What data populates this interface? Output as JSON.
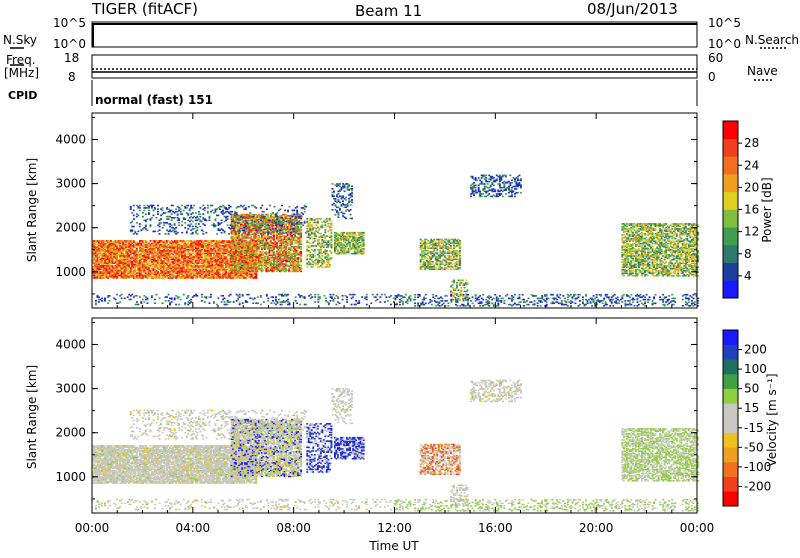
{
  "header": {
    "radar": "TIGER (fitACF)",
    "beam": "Beam 11",
    "date": "08/Jun/2013"
  },
  "top_panels": {
    "nsky_label": "N.Sky",
    "nsearch_label": "N.Search",
    "nsky_ticks": [
      "10^5",
      "10^0"
    ],
    "freq_label_1": "Freq.",
    "freq_label_2": "[MHz]",
    "freq_ticks": [
      "18",
      "8"
    ],
    "nave_label": "Nave",
    "nave_ticks": [
      "60",
      "0"
    ],
    "cpid_label": "CPID",
    "cpid_text": "normal (fast) 151"
  },
  "chart_data": [
    {
      "type": "heatmap",
      "panel": "power",
      "xlabel": "",
      "ylabel": "Slant Range [km]",
      "xlim": [
        0,
        24
      ],
      "ylim": [
        180,
        4600
      ],
      "yticks": [
        "1000",
        "2000",
        "3000",
        "4000"
      ],
      "colorbar": {
        "label": "Power [dB]",
        "ticks": [
          "4",
          "8",
          "12",
          "16",
          "20",
          "24",
          "28"
        ],
        "colors": [
          "#1a1aff",
          "#1f3f9f",
          "#2f7a6a",
          "#3f9f4f",
          "#7fbf3f",
          "#e0d020",
          "#f0a020",
          "#f07020",
          "#f04020",
          "#ff0000"
        ]
      }
    },
    {
      "type": "heatmap",
      "panel": "velocity",
      "xlabel": "Time UT",
      "ylabel": "Slant Range [km]",
      "xlim": [
        0,
        24
      ],
      "ylim": [
        180,
        4600
      ],
      "yticks": [
        "1000",
        "2000",
        "3000",
        "4000"
      ],
      "xticks": [
        "00:00",
        "04:00",
        "08:00",
        "12:00",
        "16:00",
        "20:00",
        "00:00"
      ],
      "colorbar": {
        "label": "Velocity [m s⁻¹]",
        "ticks": [
          "200",
          "100",
          "50",
          "15",
          "-15",
          "-50",
          "-100",
          "-200"
        ],
        "colors": [
          "#1a1aff",
          "#2040c0",
          "#207060",
          "#40a040",
          "#90d040",
          "#c8c8c0",
          "#c8c8c0",
          "#f0c020",
          "#f0a020",
          "#f07020",
          "#f04020",
          "#ff0000"
        ]
      }
    }
  ]
}
